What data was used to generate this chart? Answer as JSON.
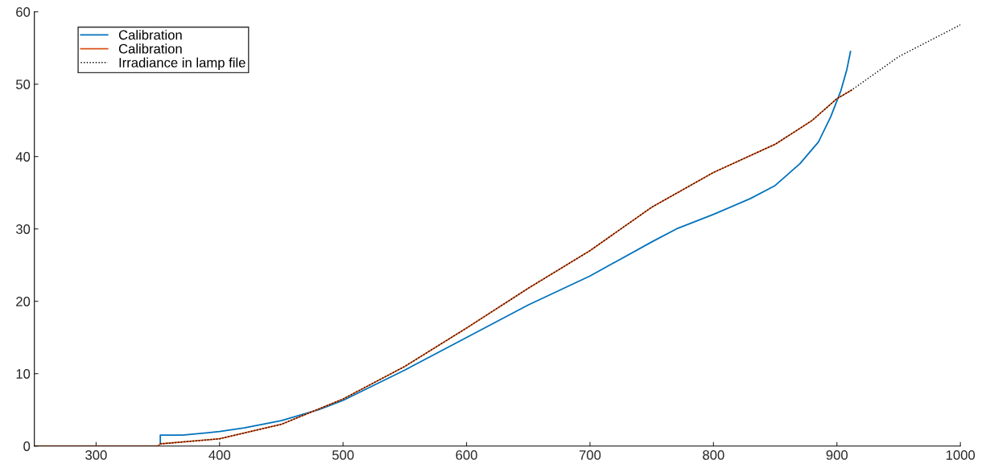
{
  "chart_data": {
    "type": "line",
    "xlim": [
      250,
      1000
    ],
    "ylim": [
      0,
      60
    ],
    "xticks": [
      300,
      400,
      500,
      600,
      700,
      800,
      900,
      1000
    ],
    "yticks": [
      0,
      10,
      20,
      30,
      40,
      50,
      60
    ],
    "grid": false,
    "legend": "top left",
    "series": [
      {
        "name": "Calibration",
        "color": "#0072bd",
        "line_style": "solid",
        "x": [
          352,
          352,
          370,
          400,
          420,
          450,
          480,
          500,
          550,
          600,
          650,
          700,
          750,
          770,
          800,
          830,
          850,
          870,
          885,
          895,
          903,
          908,
          911
        ],
        "values": [
          0.3,
          1.5,
          1.5,
          2.0,
          2.5,
          3.5,
          5.0,
          6.3,
          10.5,
          15.0,
          19.5,
          23.5,
          28.2,
          30.0,
          32.0,
          34.2,
          36.0,
          39.0,
          42.0,
          45.5,
          49.0,
          52.0,
          54.5
        ]
      },
      {
        "name": "Calibration",
        "color": "#d95319",
        "line_style": "solid",
        "x": [
          250,
          350,
          352,
          400,
          450,
          500,
          550,
          600,
          650,
          700,
          750,
          800,
          850,
          880,
          900,
          912
        ],
        "values": [
          0,
          0,
          0.3,
          1.0,
          3.0,
          6.5,
          11.0,
          16.3,
          21.8,
          27.0,
          33.0,
          37.8,
          41.7,
          45.0,
          48.0,
          49.2
        ]
      },
      {
        "name": "Irradiance in lamp file",
        "color": "#000000",
        "line_style": "dotted",
        "x": [
          352,
          400,
          450,
          500,
          550,
          600,
          650,
          700,
          750,
          800,
          850,
          880,
          900,
          912,
          950,
          1000
        ],
        "values": [
          0.3,
          1.0,
          3.0,
          6.5,
          11.0,
          16.3,
          21.8,
          27.0,
          33.0,
          37.8,
          41.7,
          45.0,
          48.0,
          49.2,
          53.8,
          58.2
        ]
      }
    ]
  }
}
